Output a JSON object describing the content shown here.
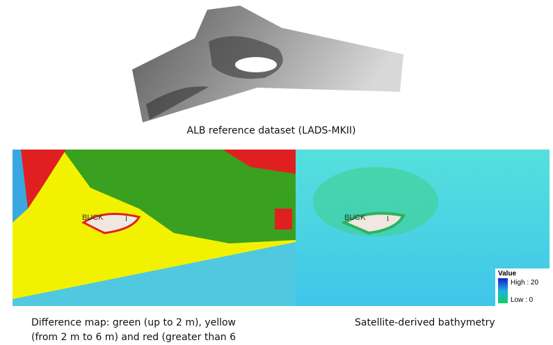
{
  "top_panel": {
    "caption": "ALB reference dataset (LADS-MKII)"
  },
  "difference_map": {
    "island_label": "BUCK",
    "island_mark": "I",
    "caption_lines": [
      "Difference map: green (up to 2 m), yellow",
      "(from 2 m to 6 m) and red (greater than 6"
    ]
  },
  "bathymetry_map": {
    "island_label": "BUCK",
    "island_mark": "I",
    "caption": "Satellite-derived bathymetry",
    "legend": {
      "title": "Value",
      "high": "High : 20",
      "low": "Low : 0"
    }
  }
}
